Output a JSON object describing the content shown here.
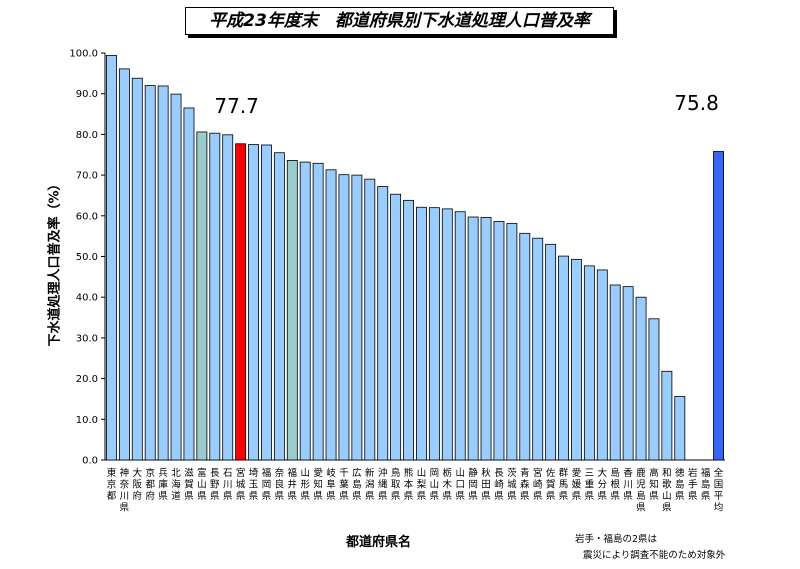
{
  "chart_data": {
    "type": "bar",
    "title": "平成23年度末　都道府県別下水道処理人口普及率",
    "xlabel": "都道府県名",
    "ylabel": "下水道処理人口普及率（%）",
    "ylim": [
      0,
      100
    ],
    "yticks": [
      "0.0",
      "10.0",
      "20.0",
      "30.0",
      "40.0",
      "50.0",
      "60.0",
      "70.0",
      "80.0",
      "90.0",
      "100.0"
    ],
    "categories": [
      "東京都",
      "神奈川県",
      "大阪府",
      "京都府",
      "兵庫県",
      "北海道",
      "滋賀県",
      "富山県",
      "長野県",
      "石川県",
      "宮城県",
      "埼玉県",
      "福岡県",
      "奈良県",
      "福井県",
      "山形県",
      "愛知県",
      "岐阜県",
      "千葉県",
      "広島県",
      "新潟県",
      "沖縄県",
      "鳥取県",
      "熊本県",
      "山梨県",
      "岡山県",
      "栃木県",
      "山口県",
      "静岡県",
      "秋田県",
      "長崎県",
      "茨城県",
      "青森県",
      "宮崎県",
      "佐賀県",
      "群馬県",
      "愛媛県",
      "三重県",
      "大分県",
      "島根県",
      "香川県",
      "鹿児島県",
      "高知県",
      "和歌山県",
      "徳島県",
      "岩手県",
      "福島県",
      "全国平均"
    ],
    "values": [
      99.4,
      96.1,
      93.8,
      92.0,
      91.9,
      89.9,
      86.5,
      80.6,
      80.3,
      79.9,
      77.7,
      77.5,
      77.4,
      75.5,
      73.6,
      73.2,
      72.9,
      71.3,
      70.1,
      70.0,
      69.0,
      67.2,
      65.3,
      63.8,
      62.1,
      62.0,
      61.7,
      61.0,
      59.7,
      59.6,
      58.6,
      58.1,
      55.7,
      54.5,
      53.0,
      50.1,
      49.3,
      47.7,
      46.7,
      43.0,
      42.6,
      40.0,
      34.7,
      21.8,
      15.6,
      null,
      null,
      75.8
    ],
    "highlight": {
      "index": 10,
      "color": "#ff0000",
      "value_label": "77.7"
    },
    "average": {
      "index": 47,
      "color": "#3366ff",
      "value_label": "75.8"
    },
    "teal_bars": [
      7,
      14
    ],
    "colors": {
      "bar": "#99ccff",
      "teal": "#99cccc",
      "highlight": "#ff0000",
      "average": "#3366ff",
      "edge": "#000000"
    },
    "grid": false,
    "legend": "none",
    "note": [
      "岩手・福島の2県は",
      "震災により調査不能のため対象外"
    ]
  }
}
